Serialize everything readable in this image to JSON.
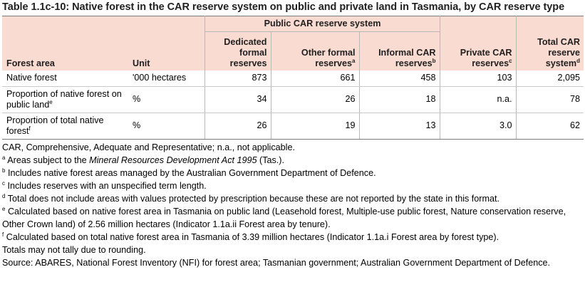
{
  "title": "Table 1.1c-10: Native forest in the CAR reserve system on public and private land in Tasmania, by CAR reserve type",
  "header": {
    "group_label": "Public CAR reserve system",
    "col_forest_area": "Forest area",
    "col_unit": "Unit",
    "col_dedicated": "Dedicated formal reserves",
    "col_other_formal": "Other formal reserves",
    "col_other_formal_sup": "a",
    "col_informal": "Informal CAR reserves",
    "col_informal_sup": "b",
    "col_private": "Private CAR reserves",
    "col_private_sup": "c",
    "col_total": "Total CAR reserve system",
    "col_total_sup": "d"
  },
  "rows": [
    {
      "forest_area": "Native forest",
      "sup": "",
      "unit": "'000 hectares",
      "dedicated": "873",
      "other_formal": "661",
      "informal": "458",
      "private": "103",
      "total": "2,095"
    },
    {
      "forest_area": "Proportion of native forest on public land",
      "sup": "e",
      "unit": "%",
      "dedicated": "34",
      "other_formal": "26",
      "informal": "18",
      "private": "n.a.",
      "total": "78"
    },
    {
      "forest_area": "Proportion of total native forest",
      "sup": "f",
      "unit": "%",
      "dedicated": "26",
      "other_formal": "19",
      "informal": "13",
      "private": "3.0",
      "total": "62"
    }
  ],
  "footnotes": {
    "abbrev": "CAR, Comprehensive, Adequate and Representative; n.a., not applicable.",
    "a_mark": "a",
    "a_pre": "Areas subject to the ",
    "a_italic": "Mineral Resources Development Act 1995",
    "a_post": " (Tas.).",
    "b_mark": "b",
    "b_text": "Includes native forest areas managed by the Australian Government Department of Defence.",
    "c_mark": "c",
    "c_text": "Includes reserves with an unspecified term length.",
    "d_mark": "d",
    "d_text": "Total does not include areas with values protected by prescription because these are not reported by the state in this format.",
    "e_mark": "e",
    "e_text": "Calculated based on native forest area in Tasmania on public land (Leasehold forest, Multiple-use public forest, Nature conservation reserve, Other Crown land) of 2.56 million hectares (Indicator 1.1a.ii Forest area by tenure).",
    "f_mark": "f",
    "f_text": "Calculated based on total native forest area in Tasmania of 3.39 million hectares (Indicator 1.1a.i Forest area by forest type).",
    "rounding": "Totals may not tally due to rounding.",
    "source": "Source: ABARES, National Forest Inventory (NFI) for forest area; Tasmanian government; Australian Government Department of Defence."
  }
}
